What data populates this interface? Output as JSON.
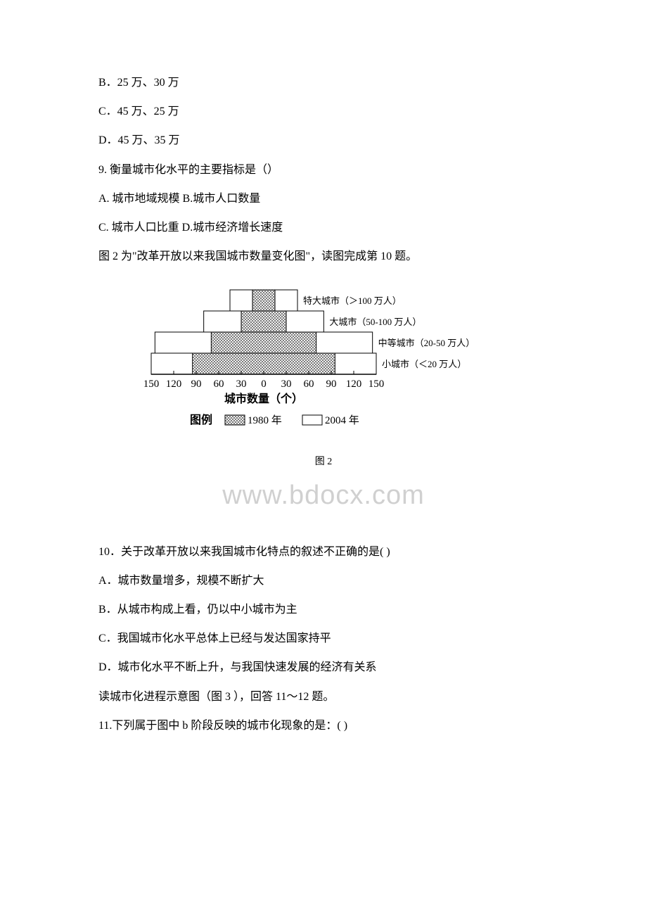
{
  "lines": {
    "option_b": "B．25 万、30 万",
    "option_c": "C．45 万、25 万",
    "option_d": "D．45 万、35 万",
    "q9": "9. 衡量城市化水平的主要指标是（）",
    "q9_ab": "A. 城市地域规模 B.城市人口数量",
    "q9_cd": "C. 城市人口比重 D.城市经济增长速度",
    "fig2_intro": "图 2 为\"改革开放以来我国城市数量变化图\"，读图完成第 10 题。",
    "q10": "10．关于改革开放以来我国城市化特点的叙述不正确的是( )",
    "q10_a": "A．城市数量增多，规模不断扩大",
    "q10_b": "B．从城市构成上看，仍以中小城市为主",
    "q10_c": "C．我国城市化水平总体上已经与发达国家持平",
    "q10_d": "D．城市化水平不断上升，与我国快速发展的经济有关系",
    "fig3_intro": "读城市化进程示意图（图 3 ），回答 11～12 题。",
    "q11": "11.下列属于图中 b 阶段反映的城市化现象的是：( )"
  },
  "chart": {
    "type": "pyramid-bar",
    "title": "图 2",
    "categories": [
      {
        "label": "特大城市（＞100 万人）",
        "val_1980": 15,
        "val_2004": 45
      },
      {
        "label": "大城市（50-100 万人）",
        "val_1980": 30,
        "val_2004": 80
      },
      {
        "label": "中等城市（20-50 万人）",
        "val_1980": 70,
        "val_2004": 145
      },
      {
        "label": "小城市（＜20 万人）",
        "val_1980": 95,
        "val_2004": 150
      }
    ],
    "x_axis_label": "城市数量（个）",
    "x_ticks": [
      "150",
      "120",
      "90",
      "60",
      "30",
      "0",
      "30",
      "60",
      "90",
      "120",
      "150"
    ],
    "legend_title": "图例",
    "legend_items": [
      {
        "label": "1980 年",
        "pattern": "crosshatch"
      },
      {
        "label": "2004 年",
        "pattern": "outline"
      }
    ],
    "colors": {
      "stroke": "#000000",
      "background": "#ffffff",
      "hatch": "#333333"
    },
    "font_size_label": 13,
    "font_size_axis": 15
  },
  "watermark": "www.bdocx.com"
}
